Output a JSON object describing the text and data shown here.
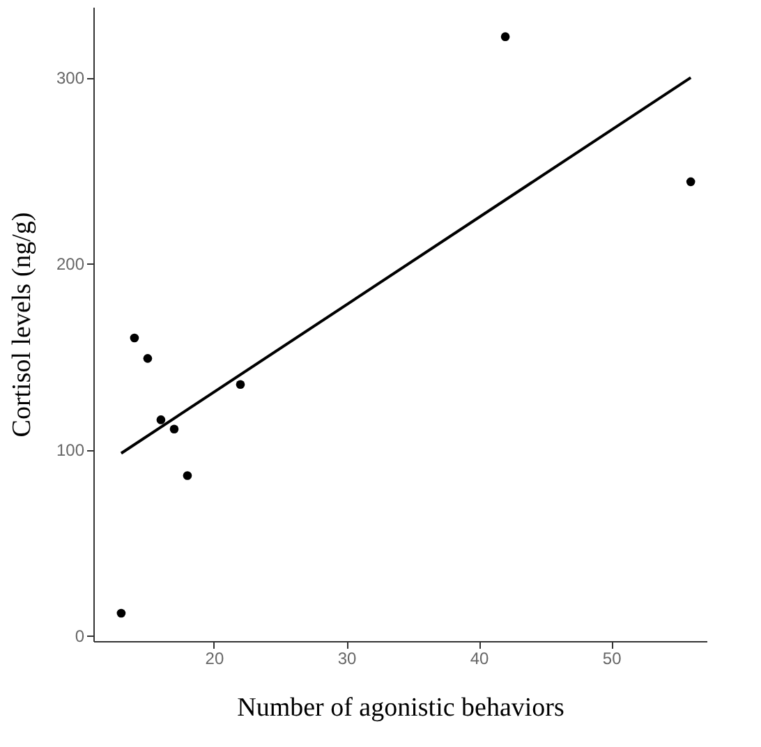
{
  "chart_data": {
    "type": "scatter",
    "xlabel": "Number of agonistic behaviors",
    "ylabel": "Cortisol levels (ng/g)",
    "xlim": [
      10.9,
      57.2
    ],
    "ylim": [
      -3,
      338
    ],
    "xticks": [
      20,
      30,
      40,
      50
    ],
    "yticks": [
      0,
      100,
      200,
      300
    ],
    "grid": false,
    "series": [
      {
        "marker": "circle",
        "color": "#000000",
        "x": [
          13,
          14,
          15,
          16,
          17,
          18,
          22,
          42,
          56
        ],
        "values": [
          12,
          160,
          149,
          116,
          111,
          86,
          135,
          322,
          244
        ]
      },
      {
        "type": "line",
        "marker": "none",
        "color": "#000000",
        "x": [
          13,
          56
        ],
        "values": [
          98,
          300
        ]
      }
    ]
  }
}
